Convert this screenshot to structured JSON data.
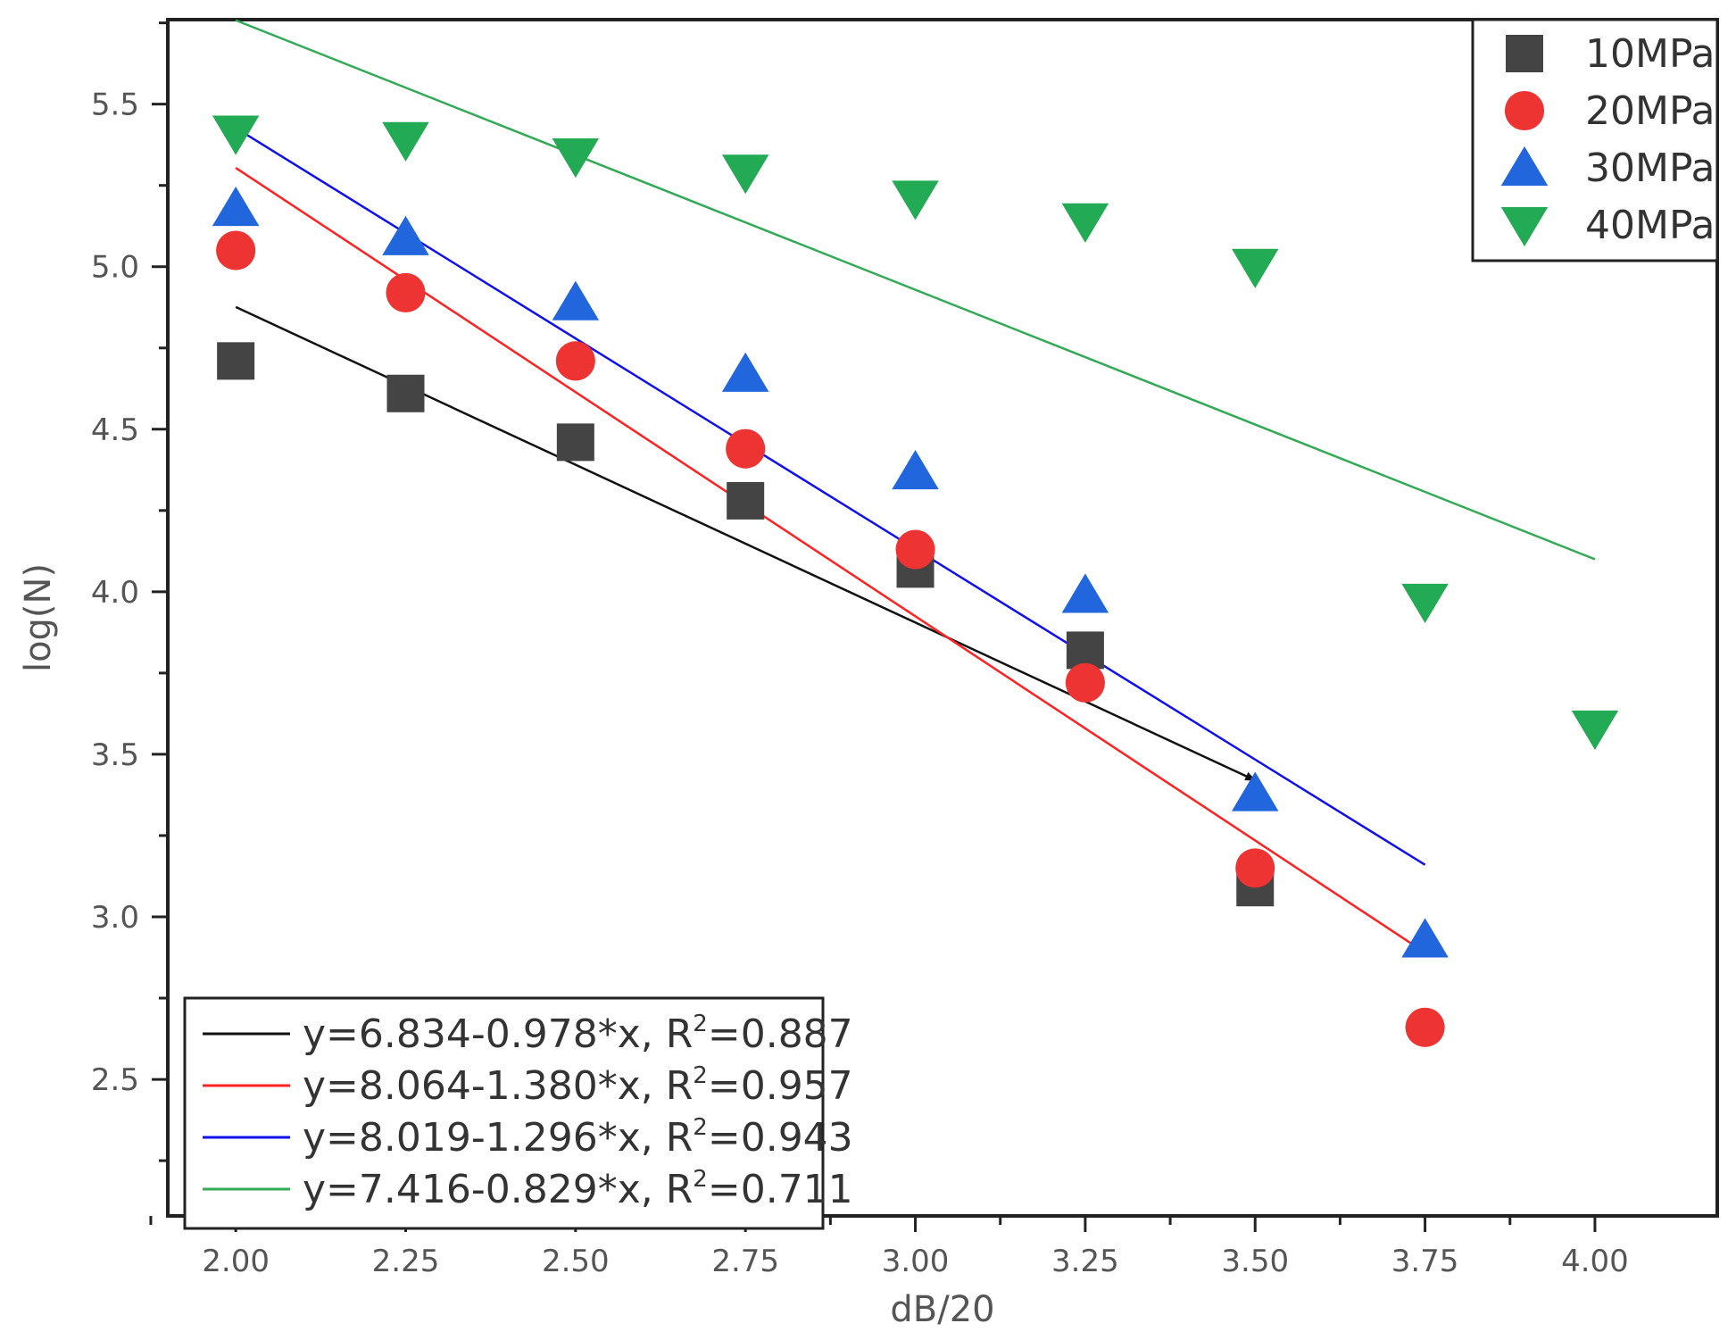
{
  "chart_data": {
    "type": "scatter",
    "title": "",
    "xlabel": "dB/20",
    "ylabel": "log(N)",
    "xlim": [
      1.9,
      4.18
    ],
    "ylim": [
      2.08,
      5.76
    ],
    "xticks": [
      2.0,
      2.25,
      2.5,
      2.75,
      3.0,
      3.25,
      3.5,
      3.75,
      4.0
    ],
    "xtick_labels": [
      "2.00",
      "2.25",
      "2.50",
      "2.75",
      "3.00",
      "3.25",
      "3.50",
      "3.75",
      "4.00"
    ],
    "yticks": [
      2.5,
      3.0,
      3.5,
      4.0,
      4.5,
      5.0,
      5.5
    ],
    "ytick_labels": [
      "2.5",
      "3.0",
      "3.5",
      "4.0",
      "4.5",
      "5.0",
      "5.5"
    ],
    "grid": false,
    "series": [
      {
        "name": "10MPa",
        "marker": "square",
        "color": "#444444",
        "x": [
          2.0,
          2.25,
          2.5,
          2.75,
          3.0,
          3.25,
          3.5
        ],
        "y": [
          4.71,
          4.61,
          4.46,
          4.28,
          4.07,
          3.82,
          3.09
        ]
      },
      {
        "name": "20MPa",
        "marker": "circle",
        "color": "#ee3333",
        "x": [
          2.0,
          2.25,
          2.5,
          2.75,
          3.0,
          3.25,
          3.5,
          3.75
        ],
        "y": [
          5.05,
          4.92,
          4.71,
          4.44,
          4.13,
          3.72,
          3.15,
          2.66
        ]
      },
      {
        "name": "30MPa",
        "marker": "triangle-up",
        "color": "#2266dd",
        "x": [
          2.0,
          2.25,
          2.5,
          2.75,
          3.0,
          3.25,
          3.5,
          3.75
        ],
        "y": [
          5.18,
          5.09,
          4.89,
          4.67,
          4.37,
          3.99,
          3.38,
          2.93
        ]
      },
      {
        "name": "40MPa",
        "marker": "triangle-down",
        "color": "#22aa55",
        "x": [
          2.0,
          2.25,
          2.5,
          2.75,
          3.0,
          3.25,
          3.5,
          3.75,
          4.0
        ],
        "y": [
          5.41,
          5.39,
          5.34,
          5.29,
          5.21,
          5.14,
          5.0,
          3.97,
          3.58
        ]
      }
    ],
    "fits": [
      {
        "label": "y=6.834-0.978*x, R",
        "r2": "=0.887",
        "color": "#111111",
        "x": [
          2.0,
          3.5
        ],
        "y": [
          4.876,
          3.42
        ],
        "arrow": true
      },
      {
        "label": "y=8.064-1.380*x, R",
        "r2": "=0.957",
        "color": "#ff2222",
        "x": [
          2.0,
          3.75
        ],
        "y": [
          5.304,
          2.89
        ],
        "arrow": false
      },
      {
        "label": "y=8.019-1.296*x, R",
        "r2": "=0.943",
        "color": "#1111ee",
        "x": [
          2.0,
          3.75
        ],
        "y": [
          5.427,
          3.16
        ],
        "arrow": false
      },
      {
        "label": "y=7.416-0.829*x, R",
        "r2": "=0.711",
        "color": "#33aa55",
        "x": [
          2.0,
          4.0
        ],
        "y": [
          5.758,
          4.1
        ],
        "arrow": false
      }
    ],
    "r2_superscript": "2",
    "legend_markers_position": "top-right",
    "legend_fits_position": "bottom-left"
  }
}
